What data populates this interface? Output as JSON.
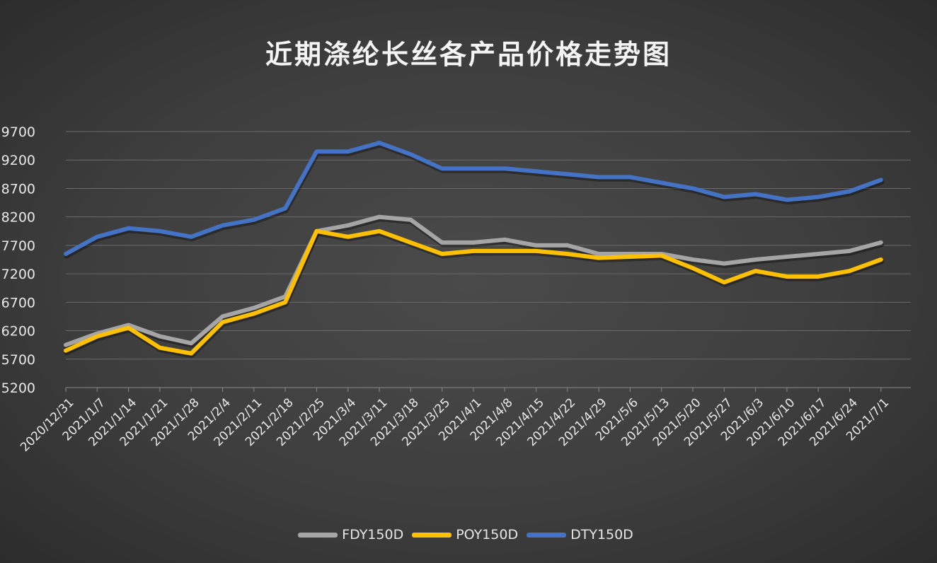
{
  "chart_data": {
    "type": "line",
    "title": "近期涤纶长丝各产品价格走势图",
    "xlabel": "",
    "ylabel": "",
    "ylim": [
      5200,
      9700
    ],
    "yticks": [
      9700,
      9200,
      8700,
      8200,
      7700,
      7200,
      6700,
      6200,
      5700,
      5200
    ],
    "grid": true,
    "legend_position": "bottom",
    "categories": [
      "2020/12/31",
      "2021/1/7",
      "2021/1/14",
      "2021/1/21",
      "2021/1/28",
      "2021/2/4",
      "2021/2/11",
      "2021/2/18",
      "2021/2/25",
      "2021/3/4",
      "2021/3/11",
      "2021/3/18",
      "2021/3/25",
      "2021/4/1",
      "2021/4/8",
      "2021/4/15",
      "2021/4/22",
      "2021/4/29",
      "2021/5/6",
      "2021/5/13",
      "2021/5/20",
      "2021/5/27",
      "2021/6/3",
      "2021/6/10",
      "2021/6/17",
      "2021/6/24",
      "2021/7/1"
    ],
    "series": [
      {
        "name": "FDY150D",
        "color": "#a5a5a5",
        "values": [
          5950,
          6150,
          6300,
          6100,
          5980,
          6450,
          6600,
          6800,
          7950,
          8050,
          8200,
          8150,
          7750,
          7750,
          7800,
          7700,
          7700,
          7550,
          7550,
          7550,
          7450,
          7380,
          7450,
          7500,
          7550,
          7600,
          7750
        ]
      },
      {
        "name": "POY150D",
        "color": "#ffc000",
        "values": [
          5850,
          6100,
          6250,
          5900,
          5800,
          6350,
          6500,
          6700,
          7950,
          7850,
          7950,
          7750,
          7550,
          7600,
          7600,
          7600,
          7550,
          7480,
          7500,
          7520,
          7300,
          7050,
          7250,
          7150,
          7150,
          7250,
          7450
        ]
      },
      {
        "name": "DTY150D",
        "color": "#4472c4",
        "values": [
          7550,
          7850,
          8000,
          7950,
          7850,
          8050,
          8150,
          8350,
          9350,
          9350,
          9500,
          9300,
          9050,
          9050,
          9050,
          9000,
          8950,
          8900,
          8900,
          8800,
          8700,
          8550,
          8600,
          8500,
          8550,
          8650,
          8850
        ]
      }
    ]
  },
  "legend": {
    "items": [
      {
        "label": "FDY150D",
        "color": "#a5a5a5"
      },
      {
        "label": "POY150D",
        "color": "#ffc000"
      },
      {
        "label": "DTY150D",
        "color": "#4472c4"
      }
    ]
  }
}
